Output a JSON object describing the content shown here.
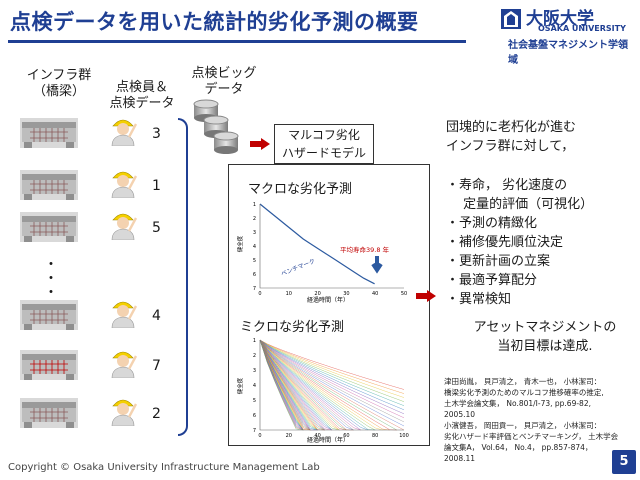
{
  "title": "点検データを用いた統計的劣化予測の概要",
  "logo": {
    "name": "大阪大学",
    "en": "OSAKA UNIVERSITY",
    "dept": "社会基盤マネジメント学領域"
  },
  "columns": {
    "infra_l1": "インフラ群",
    "infra_l2": "（橋梁）",
    "inspector_l1": "点検員＆",
    "inspector_l2": "点検データ",
    "bigdata_l1": "点検ビッグ",
    "bigdata_l2": "データ"
  },
  "rows": [
    "3",
    "1",
    "5",
    "4",
    "7",
    "2"
  ],
  "ellipsis": [
    "・",
    "・",
    "・"
  ],
  "model": {
    "line1": "マルコフ劣化",
    "line2": "ハザードモデル"
  },
  "macro": {
    "title": "マクロな劣化予測",
    "ylabel": "健全度",
    "xlabel": "経過時間（年）",
    "annotation": "平均寿命39.8 年",
    "curve_label": "ベンチマーク"
  },
  "micro": {
    "title": "ミクロな劣化予測",
    "ylabel": "健全度",
    "xlabel": "経過時間（年）"
  },
  "chart_data": [
    {
      "type": "line",
      "xlabel": "経過時間（年）",
      "ylabel": "健全度",
      "xlim": [
        0,
        50
      ],
      "ylim": [
        1,
        7
      ],
      "xticks": [
        0,
        10,
        20,
        30,
        40,
        50
      ],
      "yticks": [
        1,
        2,
        3,
        4,
        5,
        6,
        7
      ],
      "series": [
        {
          "x": [
            0,
            3,
            6,
            9,
            12,
            15,
            18,
            21,
            24,
            27,
            30,
            33,
            36,
            39.8
          ],
          "y": [
            1.0,
            1.5,
            2.0,
            2.5,
            3.0,
            3.5,
            3.9,
            4.3,
            4.7,
            5.1,
            5.5,
            5.9,
            6.3,
            6.7
          ]
        }
      ],
      "annotations": [
        "平均寿命39.8 年"
      ]
    },
    {
      "type": "line",
      "xlabel": "経過時間（年）",
      "ylabel": "健全度",
      "xlim": [
        0,
        100
      ],
      "ylim": [
        1,
        7
      ],
      "xticks": [
        0,
        20,
        40,
        60,
        80,
        100
      ],
      "yticks": [
        1,
        2,
        3,
        4,
        5,
        6,
        7
      ]
    }
  ],
  "right": {
    "intro_l1": "団塊的に老朽化が進む",
    "intro_l2": "インフラ群に対して，",
    "bullets": [
      "・寿命，  劣化速度の",
      "　 定量的評価（可視化）",
      "・予測の精緻化",
      "・補修優先順位決定",
      "・更新計画の立案",
      "・最適予算配分",
      "・異常検知"
    ],
    "goal_l1": "アセットマネジメントの",
    "goal_l2": "当初目標は達成."
  },
  "refs": [
    "津田尚胤，  貝戸清之，  青木一也，  小林潔司：",
    "橋梁劣化予測のためのマルコフ推移確率の推定,",
    "土木学会論文集，  No.801/I-73,   pp.69-82,",
    "2005.10",
    "小濱健吾，  岡田貢一，  貝戸清之，  小林潔司：",
    "劣化ハザード率評価とベンチマーキング，  土木学会",
    "論文集A，  Vol.64，  No.4，  pp.857-874，",
    "2008.11"
  ],
  "copyright": "Copyright © Osaka University Infrastructure Management Lab",
  "page_number": "5"
}
